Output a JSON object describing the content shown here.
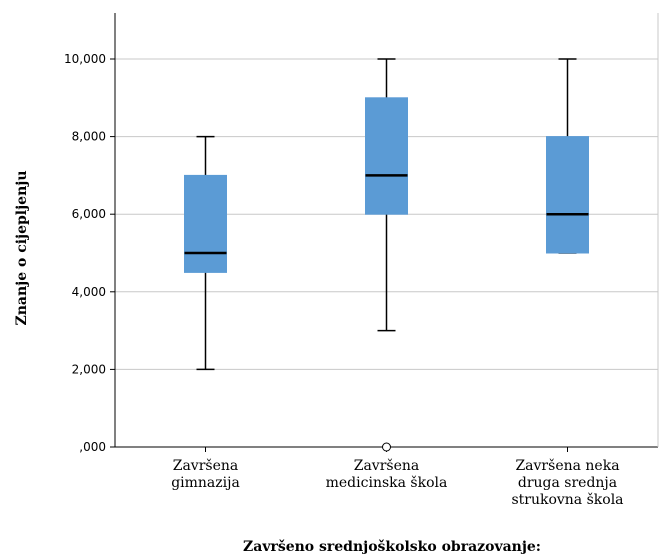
{
  "chart_data": {
    "type": "boxplot",
    "title": "",
    "xlabel": "Završeno srednjoškolsko obrazovanje:",
    "ylabel": "Znanje o cijepljenju",
    "ylim": [
      0,
      11
    ],
    "yticks": [
      {
        "value": 0,
        "label": ",000"
      },
      {
        "value": 2,
        "label": "2,000"
      },
      {
        "value": 4,
        "label": "4,000"
      },
      {
        "value": 6,
        "label": "6,000"
      },
      {
        "value": 8,
        "label": "8,000"
      },
      {
        "value": 10,
        "label": "10,000"
      }
    ],
    "grid": true,
    "box_color": "#5b9bd5",
    "categories": [
      {
        "label_lines": [
          "Završena",
          "gimnazija"
        ],
        "whisker_low": 2,
        "q1": 4.5,
        "median": 5,
        "q3": 7,
        "whisker_high": 8,
        "outliers": []
      },
      {
        "label_lines": [
          "Završena",
          "medicinska škola"
        ],
        "whisker_low": 3,
        "q1": 6,
        "median": 7,
        "q3": 9,
        "whisker_high": 10,
        "outliers": [
          0
        ]
      },
      {
        "label_lines": [
          "Završena neka",
          "druga srednja",
          "strukovna škola"
        ],
        "whisker_low": 5,
        "q1": 5,
        "median": 6,
        "q3": 8,
        "whisker_high": 10,
        "outliers": []
      }
    ]
  }
}
